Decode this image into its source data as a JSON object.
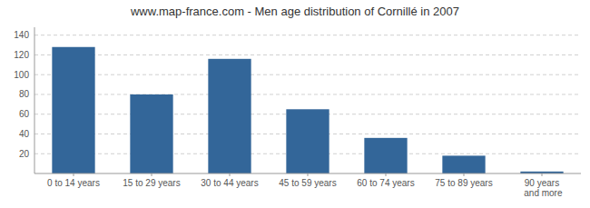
{
  "chart_data": {
    "type": "bar",
    "title": "www.map-france.com - Men age distribution of Cornillé in 2007",
    "categories": [
      "0 to 14 years",
      "15 to 29 years",
      "30 to 44 years",
      "45 to 59 years",
      "60 to 74 years",
      "75 to 89 years",
      "90 years and more"
    ],
    "values": [
      128,
      80,
      116,
      65,
      36,
      18,
      2
    ],
    "color": "#336699",
    "ylim": [
      0,
      148
    ],
    "yticks": [
      20,
      40,
      60,
      80,
      100,
      120,
      140
    ],
    "grid": true
  }
}
